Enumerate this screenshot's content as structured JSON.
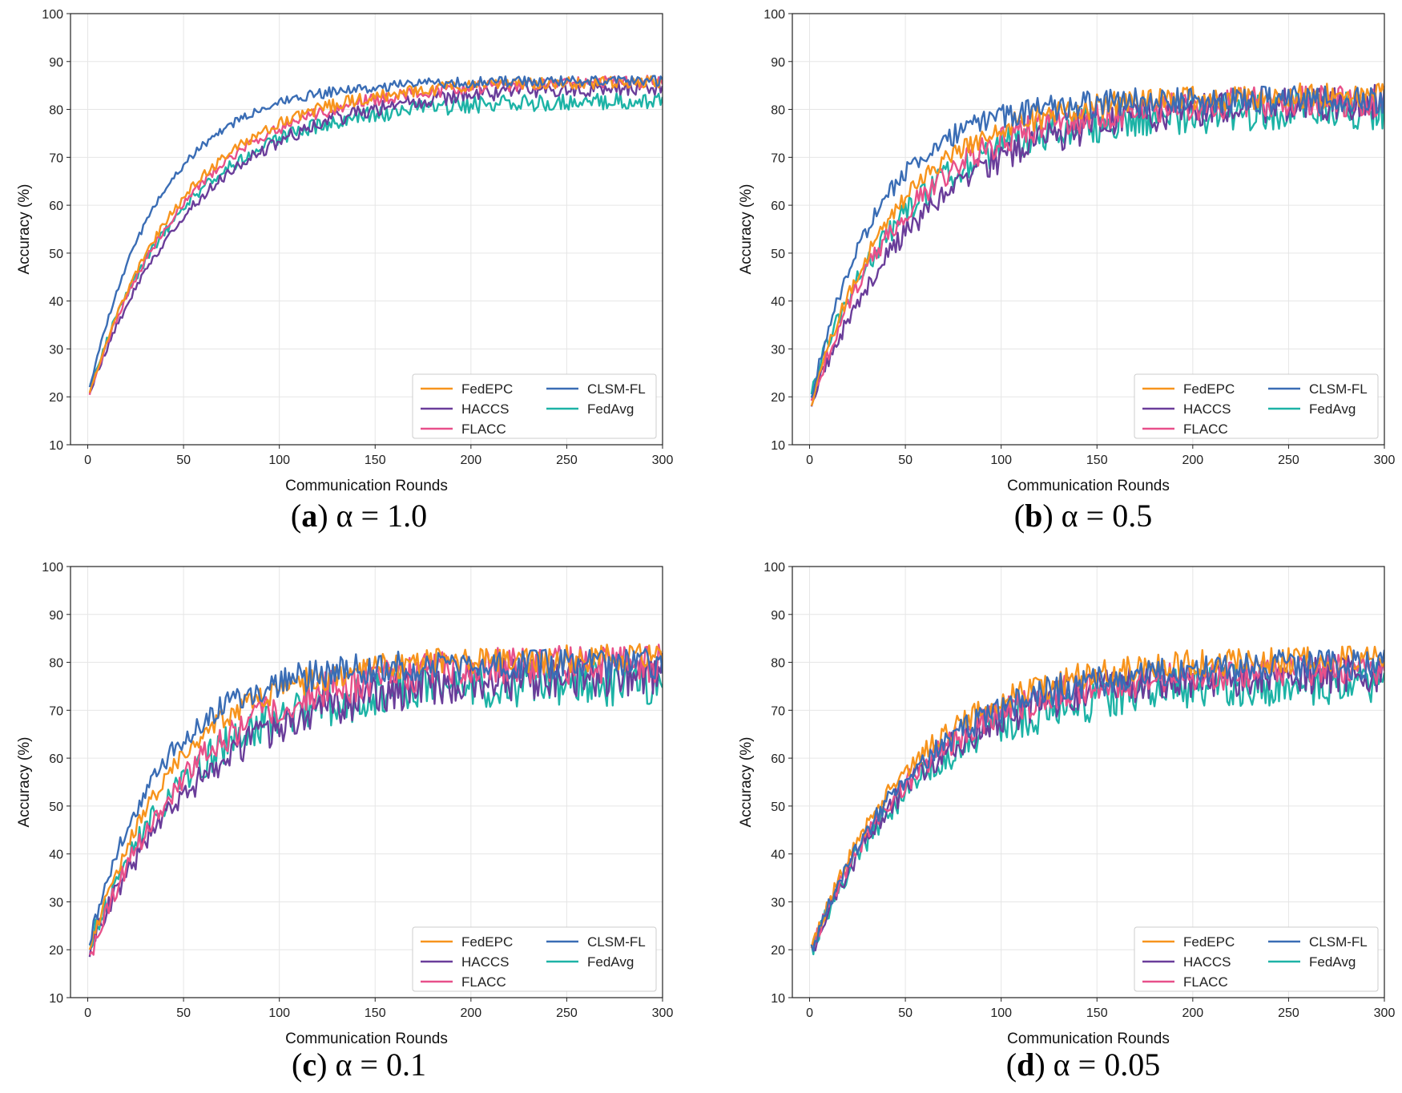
{
  "colors": {
    "FedEPC": "#F7941D",
    "HACCS": "#6A3D9A",
    "FLACC": "#E8508A",
    "CLSM-FL": "#3A6DB5",
    "FedAvg": "#1DB3A6"
  },
  "chart_data": [
    {
      "type": "line",
      "caption_letter": "a",
      "caption_rest": "α = 1.0",
      "xlabel": "Communication Rounds",
      "ylabel": "Accuracy (%)",
      "xlim": [
        -9,
        300
      ],
      "ylim": [
        10,
        100
      ],
      "xticks": [
        0,
        50,
        100,
        150,
        200,
        250,
        300
      ],
      "yticks": [
        10,
        20,
        30,
        40,
        50,
        60,
        70,
        80,
        90,
        100
      ],
      "grid": true,
      "legend": "lower-right",
      "series": [
        {
          "name": "FedEPC",
          "start": 21,
          "end": 86,
          "tau": 50,
          "noise": 0.6
        },
        {
          "name": "HACCS",
          "start": 21,
          "end": 85,
          "tau": 58,
          "noise": 0.7
        },
        {
          "name": "FLACC",
          "start": 21,
          "end": 86,
          "tau": 53,
          "noise": 0.6
        },
        {
          "name": "CLSM-FL",
          "start": 22,
          "end": 86,
          "tau": 38,
          "noise": 0.5
        },
        {
          "name": "FedAvg",
          "start": 22,
          "end": 82,
          "tau": 50,
          "noise": 0.8
        }
      ]
    },
    {
      "type": "line",
      "caption_letter": "b",
      "caption_rest": "α = 0.5",
      "xlabel": "Communication Rounds",
      "ylabel": "Accuracy (%)",
      "xlim": [
        -9,
        300
      ],
      "ylim": [
        10,
        100
      ],
      "xticks": [
        0,
        50,
        100,
        150,
        200,
        250,
        300
      ],
      "yticks": [
        10,
        20,
        30,
        40,
        50,
        60,
        70,
        80,
        90,
        100
      ],
      "grid": true,
      "legend": "lower-right",
      "series": [
        {
          "name": "FedEPC",
          "start": 19,
          "end": 83,
          "tau": 45,
          "noise": 1.2
        },
        {
          "name": "HACCS",
          "start": 19,
          "end": 82,
          "tau": 60,
          "noise": 1.6
        },
        {
          "name": "FLACC",
          "start": 19,
          "end": 82,
          "tau": 50,
          "noise": 1.5
        },
        {
          "name": "CLSM-FL",
          "start": 20,
          "end": 82,
          "tau": 35,
          "noise": 1.3
        },
        {
          "name": "FedAvg",
          "start": 22,
          "end": 80,
          "tau": 50,
          "noise": 1.8
        }
      ]
    },
    {
      "type": "line",
      "caption_letter": "c",
      "caption_rest": "α = 0.1",
      "xlabel": "Communication Rounds",
      "ylabel": "Accuracy (%)",
      "xlim": [
        -9,
        300
      ],
      "ylim": [
        10,
        100
      ],
      "xticks": [
        0,
        50,
        100,
        150,
        200,
        250,
        300
      ],
      "yticks": [
        10,
        20,
        30,
        40,
        50,
        60,
        70,
        80,
        90,
        100
      ],
      "grid": true,
      "legend": "lower-right",
      "series": [
        {
          "name": "FedEPC",
          "start": 20,
          "end": 81,
          "tau": 45,
          "noise": 1.3
        },
        {
          "name": "HACCS",
          "start": 20,
          "end": 78,
          "tau": 60,
          "noise": 2.0
        },
        {
          "name": "FLACC",
          "start": 18,
          "end": 80,
          "tau": 52,
          "noise": 1.8
        },
        {
          "name": "CLSM-FL",
          "start": 22,
          "end": 80,
          "tau": 38,
          "noise": 1.5
        },
        {
          "name": "FedAvg",
          "start": 21,
          "end": 76,
          "tau": 50,
          "noise": 2.2
        }
      ]
    },
    {
      "type": "line",
      "caption_letter": "d",
      "caption_rest": "α = 0.05",
      "xlabel": "Communication Rounds",
      "ylabel": "Accuracy (%)",
      "xlim": [
        -9,
        300
      ],
      "ylim": [
        10,
        100
      ],
      "xticks": [
        0,
        50,
        100,
        150,
        200,
        250,
        300
      ],
      "yticks": [
        10,
        20,
        30,
        40,
        50,
        60,
        70,
        80,
        90,
        100
      ],
      "grid": true,
      "legend": "lower-right",
      "series": [
        {
          "name": "FedEPC",
          "start": 20,
          "end": 81,
          "tau": 52,
          "noise": 1.3
        },
        {
          "name": "HACCS",
          "start": 19,
          "end": 78,
          "tau": 55,
          "noise": 1.8
        },
        {
          "name": "FLACC",
          "start": 20,
          "end": 79,
          "tau": 55,
          "noise": 1.6
        },
        {
          "name": "CLSM-FL",
          "start": 20,
          "end": 80,
          "tau": 55,
          "noise": 1.5
        },
        {
          "name": "FedAvg",
          "start": 20,
          "end": 76,
          "tau": 55,
          "noise": 2.0
        }
      ]
    }
  ]
}
